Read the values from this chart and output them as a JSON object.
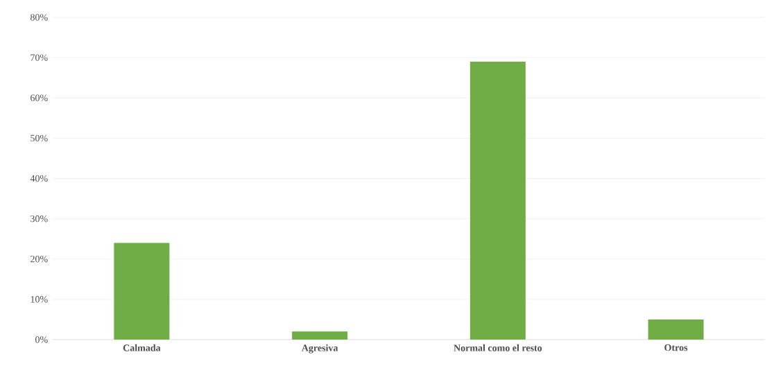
{
  "chart_data": {
    "type": "bar",
    "categories": [
      "Calmada",
      "Agresiva",
      "Normal como el resto",
      "Otros"
    ],
    "values": [
      24,
      2,
      69,
      5
    ],
    "color": "#70ad47",
    "ylim": [
      0,
      80
    ],
    "yticks": [
      {
        "value": 0,
        "label": "0%"
      },
      {
        "value": 10,
        "label": "10%"
      },
      {
        "value": 20,
        "label": "20%"
      },
      {
        "value": 30,
        "label": "30%"
      },
      {
        "value": 40,
        "label": "40%"
      },
      {
        "value": 50,
        "label": "50%"
      },
      {
        "value": 60,
        "label": "60%"
      },
      {
        "value": 70,
        "label": "70%"
      },
      {
        "value": 80,
        "label": "80%"
      }
    ],
    "grid": "y"
  }
}
